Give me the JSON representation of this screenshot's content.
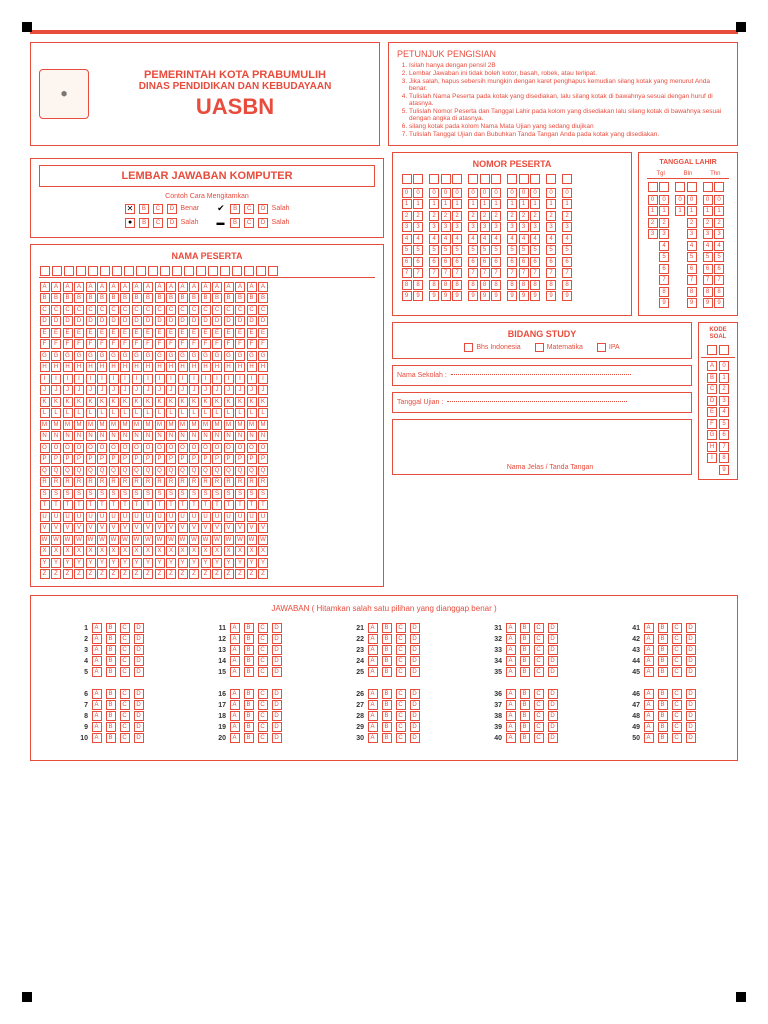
{
  "colors": {
    "primary": "#e84c3d",
    "text": "#333",
    "bg": "#ffffff"
  },
  "header": {
    "gov1": "PEMERINTAH KOTA PRABUMULIH",
    "gov2": "DINAS PENDIDIKAN DAN KEBUDAYAAN",
    "title": "UASBN"
  },
  "instructions": {
    "title": "PETUNJUK PENGISIAN",
    "items": [
      "Isilah hanya dengan pensil 2B",
      "Lembar Jawaban ini tidak boleh kotor, basah, robek, atau terlipat.",
      "Jika salah, hapus sebersih mungkin dengan karet penghapus kemudian silang kotak yang menurut Anda benar.",
      "Tulislah Nama Peserta pada kotak yang disediakan, lalu silang kotak di bawahnya sesuai dengan huruf di atasnya.",
      "Tulislah Nomor Peserta dan Tanggal Lahir pada kolom yang disediakan lalu silang kotak di bawahnya sesuai dengan angka di atasnya.",
      "silang kotak pada kolom Nama Mata Ujian yang sedang diujikan",
      "Tulislah Tanggal Ujian dan Bubuhkan Tanda Tangan Anda pada kotak yang disediakan."
    ]
  },
  "ljk": {
    "title": "LEMBAR JAWABAN KOMPUTER",
    "example_title": "Contoh Cara Mengitamkan",
    "benar": "Benar",
    "salah": "Salah"
  },
  "sections": {
    "nama": "NAMA PESERTA",
    "nomor": "NOMOR PESERTA",
    "tgl": "TANGGAL LAHIR",
    "tgl_cols": [
      "Tgl",
      "Bln",
      "Thn"
    ],
    "bidang": "BIDANG STUDY",
    "subjects": [
      "Bhs Indonesia",
      "Matematika",
      "IPA"
    ],
    "kode": "KODE SOAL",
    "sekolah": "Nama Sekolah",
    "ujian": "Tanggal Ujian",
    "sig": "Nama Jelas / Tanda Tangan",
    "jawaban": "JAWABAN ( Hitamkan salah satu pilihan yang dianggap benar )"
  },
  "alphabet": [
    "A",
    "B",
    "C",
    "D",
    "E",
    "F",
    "G",
    "H",
    "I",
    "J",
    "K",
    "L",
    "M",
    "N",
    "O",
    "P",
    "Q",
    "R",
    "S",
    "T",
    "U",
    "V",
    "W",
    "X",
    "Y",
    "Z"
  ],
  "digits": [
    "0",
    "1",
    "2",
    "3",
    "4",
    "5",
    "6",
    "7",
    "8",
    "9"
  ],
  "kode_letters": [
    "A",
    "B",
    "C",
    "D",
    "E",
    "F",
    "G",
    "H",
    "I"
  ],
  "answer_opts": [
    "A",
    "B",
    "C",
    "D"
  ],
  "nama_cols": 20,
  "nomor_groups": [
    2,
    3,
    3,
    3,
    1,
    1
  ],
  "tgl_groups": [
    2,
    2,
    2
  ],
  "answer_count": 50
}
